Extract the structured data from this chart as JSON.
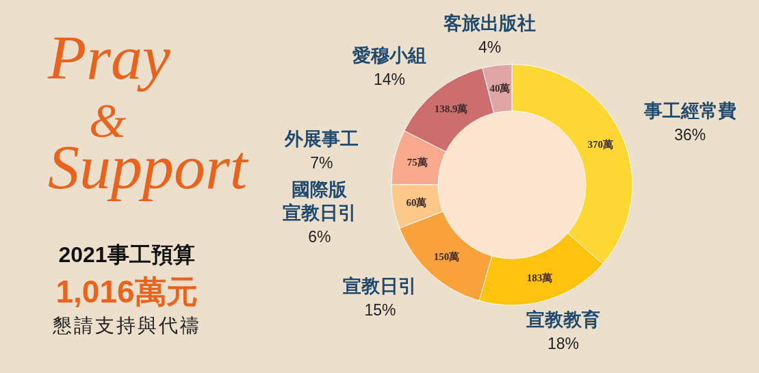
{
  "chart_data": {
    "type": "donut",
    "title": "Pray & Support",
    "subtitle": "2021事工預算",
    "categories": [
      "事工經常費",
      "宣教教育",
      "宣教日引",
      "國際版宣教日引",
      "外展事工",
      "愛穆小組",
      "客旅出版社"
    ],
    "values": [
      370,
      183,
      150,
      60,
      75,
      138.9,
      40
    ],
    "value_labels": [
      "370萬",
      "183萬",
      "150萬",
      "60萬",
      "75萬",
      "138.9萬",
      "40萬"
    ],
    "colors": [
      "#fdd835",
      "#ffc20e",
      "#f9a13a",
      "#fcc98a",
      "#f9a98c",
      "#cd6e6e",
      "#e0a5a5"
    ],
    "annotations": [
      {
        "text": "36%",
        "x": "事工經常費"
      },
      {
        "text": "18%",
        "x": "宣教教育"
      },
      {
        "text": "15%",
        "x": "宣教日引"
      },
      {
        "text": "6%",
        "x": "國際版宣教日引"
      },
      {
        "text": "7%",
        "x": "外展事工"
      },
      {
        "text": "14%",
        "x": "愛穆小組"
      },
      {
        "text": "4%",
        "x": "客旅出版社"
      },
      "1,016萬元",
      "懇請支持與代禱"
    ]
  }
}
